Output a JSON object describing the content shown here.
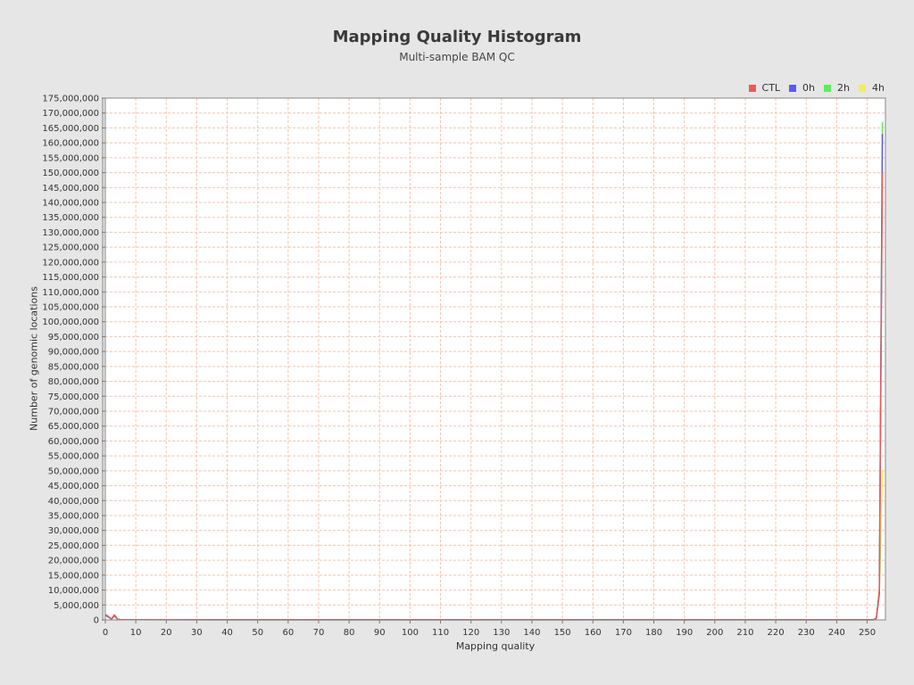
{
  "chart_data": {
    "type": "line",
    "title": "Mapping Quality Histogram",
    "subtitle": "Multi-sample BAM QC",
    "xlabel": "Mapping quality",
    "ylabel": "Number of genomic locations",
    "xlim": [
      0,
      256
    ],
    "ylim": [
      0,
      175000000
    ],
    "x_ticks": [
      0,
      10,
      20,
      30,
      40,
      50,
      60,
      70,
      80,
      90,
      100,
      110,
      120,
      130,
      140,
      150,
      160,
      170,
      180,
      190,
      200,
      210,
      220,
      230,
      240,
      250
    ],
    "y_ticks": [
      0,
      5000000,
      10000000,
      15000000,
      20000000,
      25000000,
      30000000,
      35000000,
      40000000,
      45000000,
      50000000,
      55000000,
      60000000,
      65000000,
      70000000,
      75000000,
      80000000,
      85000000,
      90000000,
      95000000,
      100000000,
      105000000,
      110000000,
      115000000,
      120000000,
      125000000,
      130000000,
      135000000,
      140000000,
      145000000,
      150000000,
      155000000,
      160000000,
      165000000,
      170000000,
      175000000
    ],
    "y_tick_labels": [
      "0",
      "5,000,000",
      "10,000,000",
      "15,000,000",
      "20,000,000",
      "25,000,000",
      "30,000,000",
      "35,000,000",
      "40,000,000",
      "45,000,000",
      "50,000,000",
      "55,000,000",
      "60,000,000",
      "65,000,000",
      "70,000,000",
      "75,000,000",
      "80,000,000",
      "85,000,000",
      "90,000,000",
      "95,000,000",
      "100,000,000",
      "105,000,000",
      "110,000,000",
      "115,000,000",
      "120,000,000",
      "125,000,000",
      "130,000,000",
      "135,000,000",
      "140,000,000",
      "145,000,000",
      "150,000,000",
      "155,000,000",
      "160,000,000",
      "165,000,000",
      "170,000,000",
      "175,000,000"
    ],
    "grid": true,
    "legend_position": "top-right",
    "series": [
      {
        "name": "CTL",
        "color": "#e85a5a",
        "points": [
          [
            0,
            1800000
          ],
          [
            1,
            1200000
          ],
          [
            2,
            300000
          ],
          [
            3,
            1700000
          ],
          [
            4,
            200000
          ],
          [
            5,
            100000
          ],
          [
            10,
            60000
          ],
          [
            50,
            40000
          ],
          [
            100,
            30000
          ],
          [
            200,
            30000
          ],
          [
            252,
            40000
          ],
          [
            253,
            600000
          ],
          [
            254,
            10000000
          ],
          [
            255,
            150000000
          ]
        ]
      },
      {
        "name": "0h",
        "color": "#5b5bf0",
        "points": [
          [
            0,
            1500000
          ],
          [
            1,
            1000000
          ],
          [
            2,
            250000
          ],
          [
            3,
            1400000
          ],
          [
            4,
            180000
          ],
          [
            5,
            90000
          ],
          [
            10,
            50000
          ],
          [
            50,
            35000
          ],
          [
            100,
            25000
          ],
          [
            200,
            25000
          ],
          [
            252,
            35000
          ],
          [
            253,
            500000
          ],
          [
            254,
            9000000
          ],
          [
            255,
            163000000
          ]
        ]
      },
      {
        "name": "2h",
        "color": "#5bef5b",
        "points": [
          [
            0,
            1600000
          ],
          [
            1,
            1100000
          ],
          [
            2,
            280000
          ],
          [
            3,
            1500000
          ],
          [
            4,
            190000
          ],
          [
            5,
            95000
          ],
          [
            10,
            55000
          ],
          [
            50,
            38000
          ],
          [
            100,
            28000
          ],
          [
            200,
            28000
          ],
          [
            252,
            38000
          ],
          [
            253,
            550000
          ],
          [
            254,
            9500000
          ],
          [
            255,
            167000000
          ]
        ]
      },
      {
        "name": "4h",
        "color": "#efef5b",
        "points": [
          [
            0,
            1400000
          ],
          [
            1,
            950000
          ],
          [
            2,
            240000
          ],
          [
            3,
            1300000
          ],
          [
            4,
            170000
          ],
          [
            5,
            85000
          ],
          [
            10,
            48000
          ],
          [
            50,
            33000
          ],
          [
            100,
            24000
          ],
          [
            200,
            24000
          ],
          [
            252,
            33000
          ],
          [
            253,
            450000
          ],
          [
            254,
            8500000
          ],
          [
            255,
            50000000
          ]
        ]
      }
    ]
  }
}
